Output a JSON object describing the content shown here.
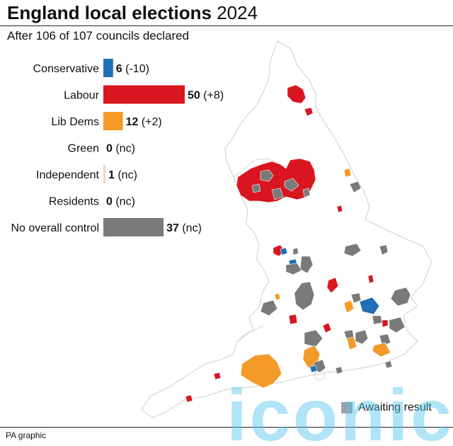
{
  "title_bold": "England local elections",
  "title_year": "2024",
  "subtitle": "After 106 of 107 councils declared",
  "legend_awaiting": "Awaiting result",
  "source": "PA graphic",
  "watermark_text": "iconic",
  "colors": {
    "conservative": "#1f6fb5",
    "labour": "#d9161f",
    "libdem": "#f39a27",
    "green": "#6ab023",
    "independent": "#f6d3c4",
    "residents": "#9b6b3a",
    "noc": "#7a7a7a",
    "awaiting": "#808080"
  },
  "chart_data": {
    "type": "bar",
    "orientation": "horizontal",
    "categories": [
      "Conservative",
      "Labour",
      "Lib Dems",
      "Green",
      "Independent",
      "Residents",
      "No overall control"
    ],
    "values": [
      6,
      50,
      12,
      0,
      1,
      0,
      37
    ],
    "changes": [
      "(-10)",
      "(+8)",
      "(+2)",
      "(nc)",
      "(nc)",
      "(nc)",
      "(nc)"
    ],
    "colors": [
      "#1f6fb5",
      "#d9161f",
      "#f39a27",
      "#6ab023",
      "#f6d3c4",
      "#9b6b3a",
      "#7a7a7a"
    ],
    "unit": "councils"
  }
}
